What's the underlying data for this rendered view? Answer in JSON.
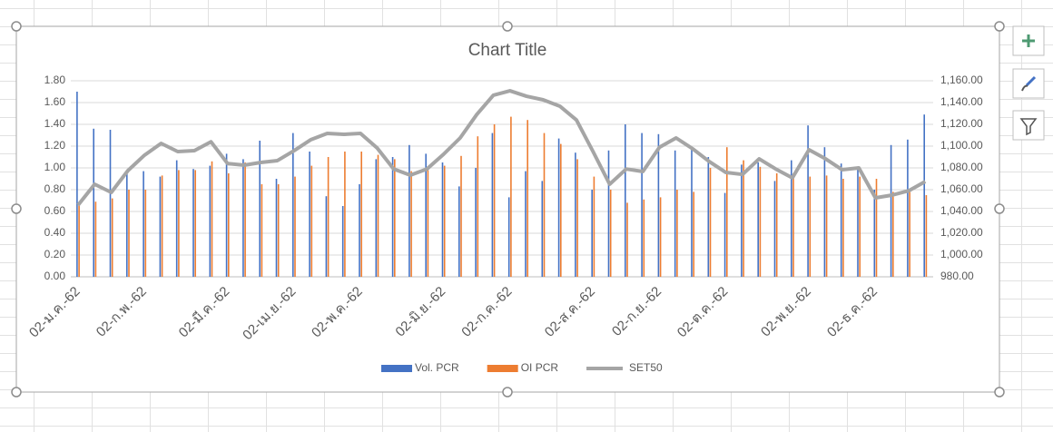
{
  "chart_data": {
    "type": "combo",
    "title": "Chart Title",
    "categories": [
      "02-ม.ค.-62",
      null,
      null,
      null,
      "02-ก.พ.-62",
      null,
      null,
      null,
      null,
      "02-มี.ค.-62",
      null,
      null,
      null,
      "02-เม.ย.-62",
      null,
      null,
      null,
      "02-พ.ค.-62",
      null,
      null,
      null,
      null,
      "02-มิ.ย.-62",
      null,
      null,
      null,
      "02-ก.ค.-62",
      null,
      null,
      null,
      null,
      "02-ส.ค.-62",
      null,
      null,
      null,
      "02-ก.ย.-62",
      null,
      null,
      null,
      "02-ต.ค.-62",
      null,
      null,
      null,
      null,
      "02-พ.ย.-62",
      null,
      null,
      null,
      "02-ธ.ค.-62",
      null,
      null,
      null
    ],
    "series": [
      {
        "name": "Vol. PCR",
        "color": "#4472c4",
        "values": [
          1.7,
          1.36,
          1.35,
          0.95,
          0.97,
          0.92,
          1.07,
          0.99,
          1.02,
          1.13,
          1.08,
          1.25,
          0.9,
          1.32,
          1.15,
          0.74,
          0.65,
          0.85,
          1.08,
          1.1,
          1.21,
          1.13,
          1.05,
          0.83,
          1.0,
          1.32,
          0.73,
          0.97,
          0.88,
          1.27,
          1.14,
          0.8,
          1.16,
          1.4,
          1.32,
          1.31,
          1.16,
          1.18,
          1.1,
          0.77,
          1.03,
          1.05,
          0.88,
          1.07,
          1.39,
          1.19,
          1.04,
          1.0,
          0.8,
          1.21,
          1.26,
          1.49
        ]
      },
      {
        "name": "OI PCR",
        "color": "#ed7d31",
        "values": [
          0.66,
          0.69,
          0.72,
          0.8,
          0.8,
          0.93,
          0.98,
          0.98,
          1.06,
          0.95,
          1.05,
          0.85,
          0.85,
          0.92,
          1.02,
          1.1,
          1.15,
          1.15,
          1.12,
          1.08,
          0.97,
          0.98,
          1.02,
          1.11,
          1.29,
          1.4,
          1.47,
          1.44,
          1.32,
          1.22,
          1.08,
          0.92,
          0.8,
          0.68,
          0.71,
          0.73,
          0.8,
          0.78,
          1.0,
          1.19,
          1.07,
          1.01,
          0.95,
          0.95,
          0.92,
          0.93,
          0.9,
          0.92,
          0.9,
          0.78,
          0.8,
          0.75
        ]
      },
      {
        "name": "SET50",
        "color": "#a5a5a5",
        "axis": "y2",
        "values": [
          1045.8,
          1065,
          1057.5,
          1077.5,
          1091.7,
          1102.5,
          1095,
          1095.8,
          1104,
          1084,
          1082.5,
          1085,
          1086.7,
          1095.8,
          1105.8,
          1111.7,
          1110.8,
          1111.7,
          1098.3,
          1079,
          1073.3,
          1079,
          1092.5,
          1107.5,
          1129,
          1146.7,
          1150.8,
          1145.8,
          1142.5,
          1136.7,
          1124,
          1095,
          1065,
          1079,
          1076.7,
          1099,
          1107.5,
          1097.5,
          1085.8,
          1075.8,
          1074,
          1088.3,
          1079,
          1070.8,
          1096.7,
          1088.3,
          1078.3,
          1080,
          1052.5,
          1055,
          1059,
          1067.5
        ]
      }
    ],
    "ylim": [
      0,
      1.8
    ],
    "yticks": [
      {
        "value": 0,
        "label": "0.00"
      },
      {
        "value": 0.2,
        "label": "0.20"
      },
      {
        "value": 0.4,
        "label": "0.40"
      },
      {
        "value": 0.6,
        "label": "0.60"
      },
      {
        "value": 0.8,
        "label": "0.80"
      },
      {
        "value": 1,
        "label": "1.00"
      },
      {
        "value": 1.2,
        "label": "1.20"
      },
      {
        "value": 1.4,
        "label": "1.40"
      },
      {
        "value": 1.6,
        "label": "1.60"
      },
      {
        "value": 1.8,
        "label": "1.80"
      }
    ],
    "y2lim": [
      980,
      1160
    ],
    "y2ticks": [
      {
        "value": 980,
        "label": "980.00"
      },
      {
        "value": 1000,
        "label": "1,000.00"
      },
      {
        "value": 1020,
        "label": "1,020.00"
      },
      {
        "value": 1040,
        "label": "1,040.00"
      },
      {
        "value": 1060,
        "label": "1,060.00"
      },
      {
        "value": 1080,
        "label": "1,080.00"
      },
      {
        "value": 1100,
        "label": "1,100.00"
      },
      {
        "value": 1120,
        "label": "1,120.00"
      },
      {
        "value": 1140,
        "label": "1,140.00"
      },
      {
        "value": 1160,
        "label": "1,160.00"
      }
    ],
    "grid": true,
    "legend": "bottom"
  }
}
